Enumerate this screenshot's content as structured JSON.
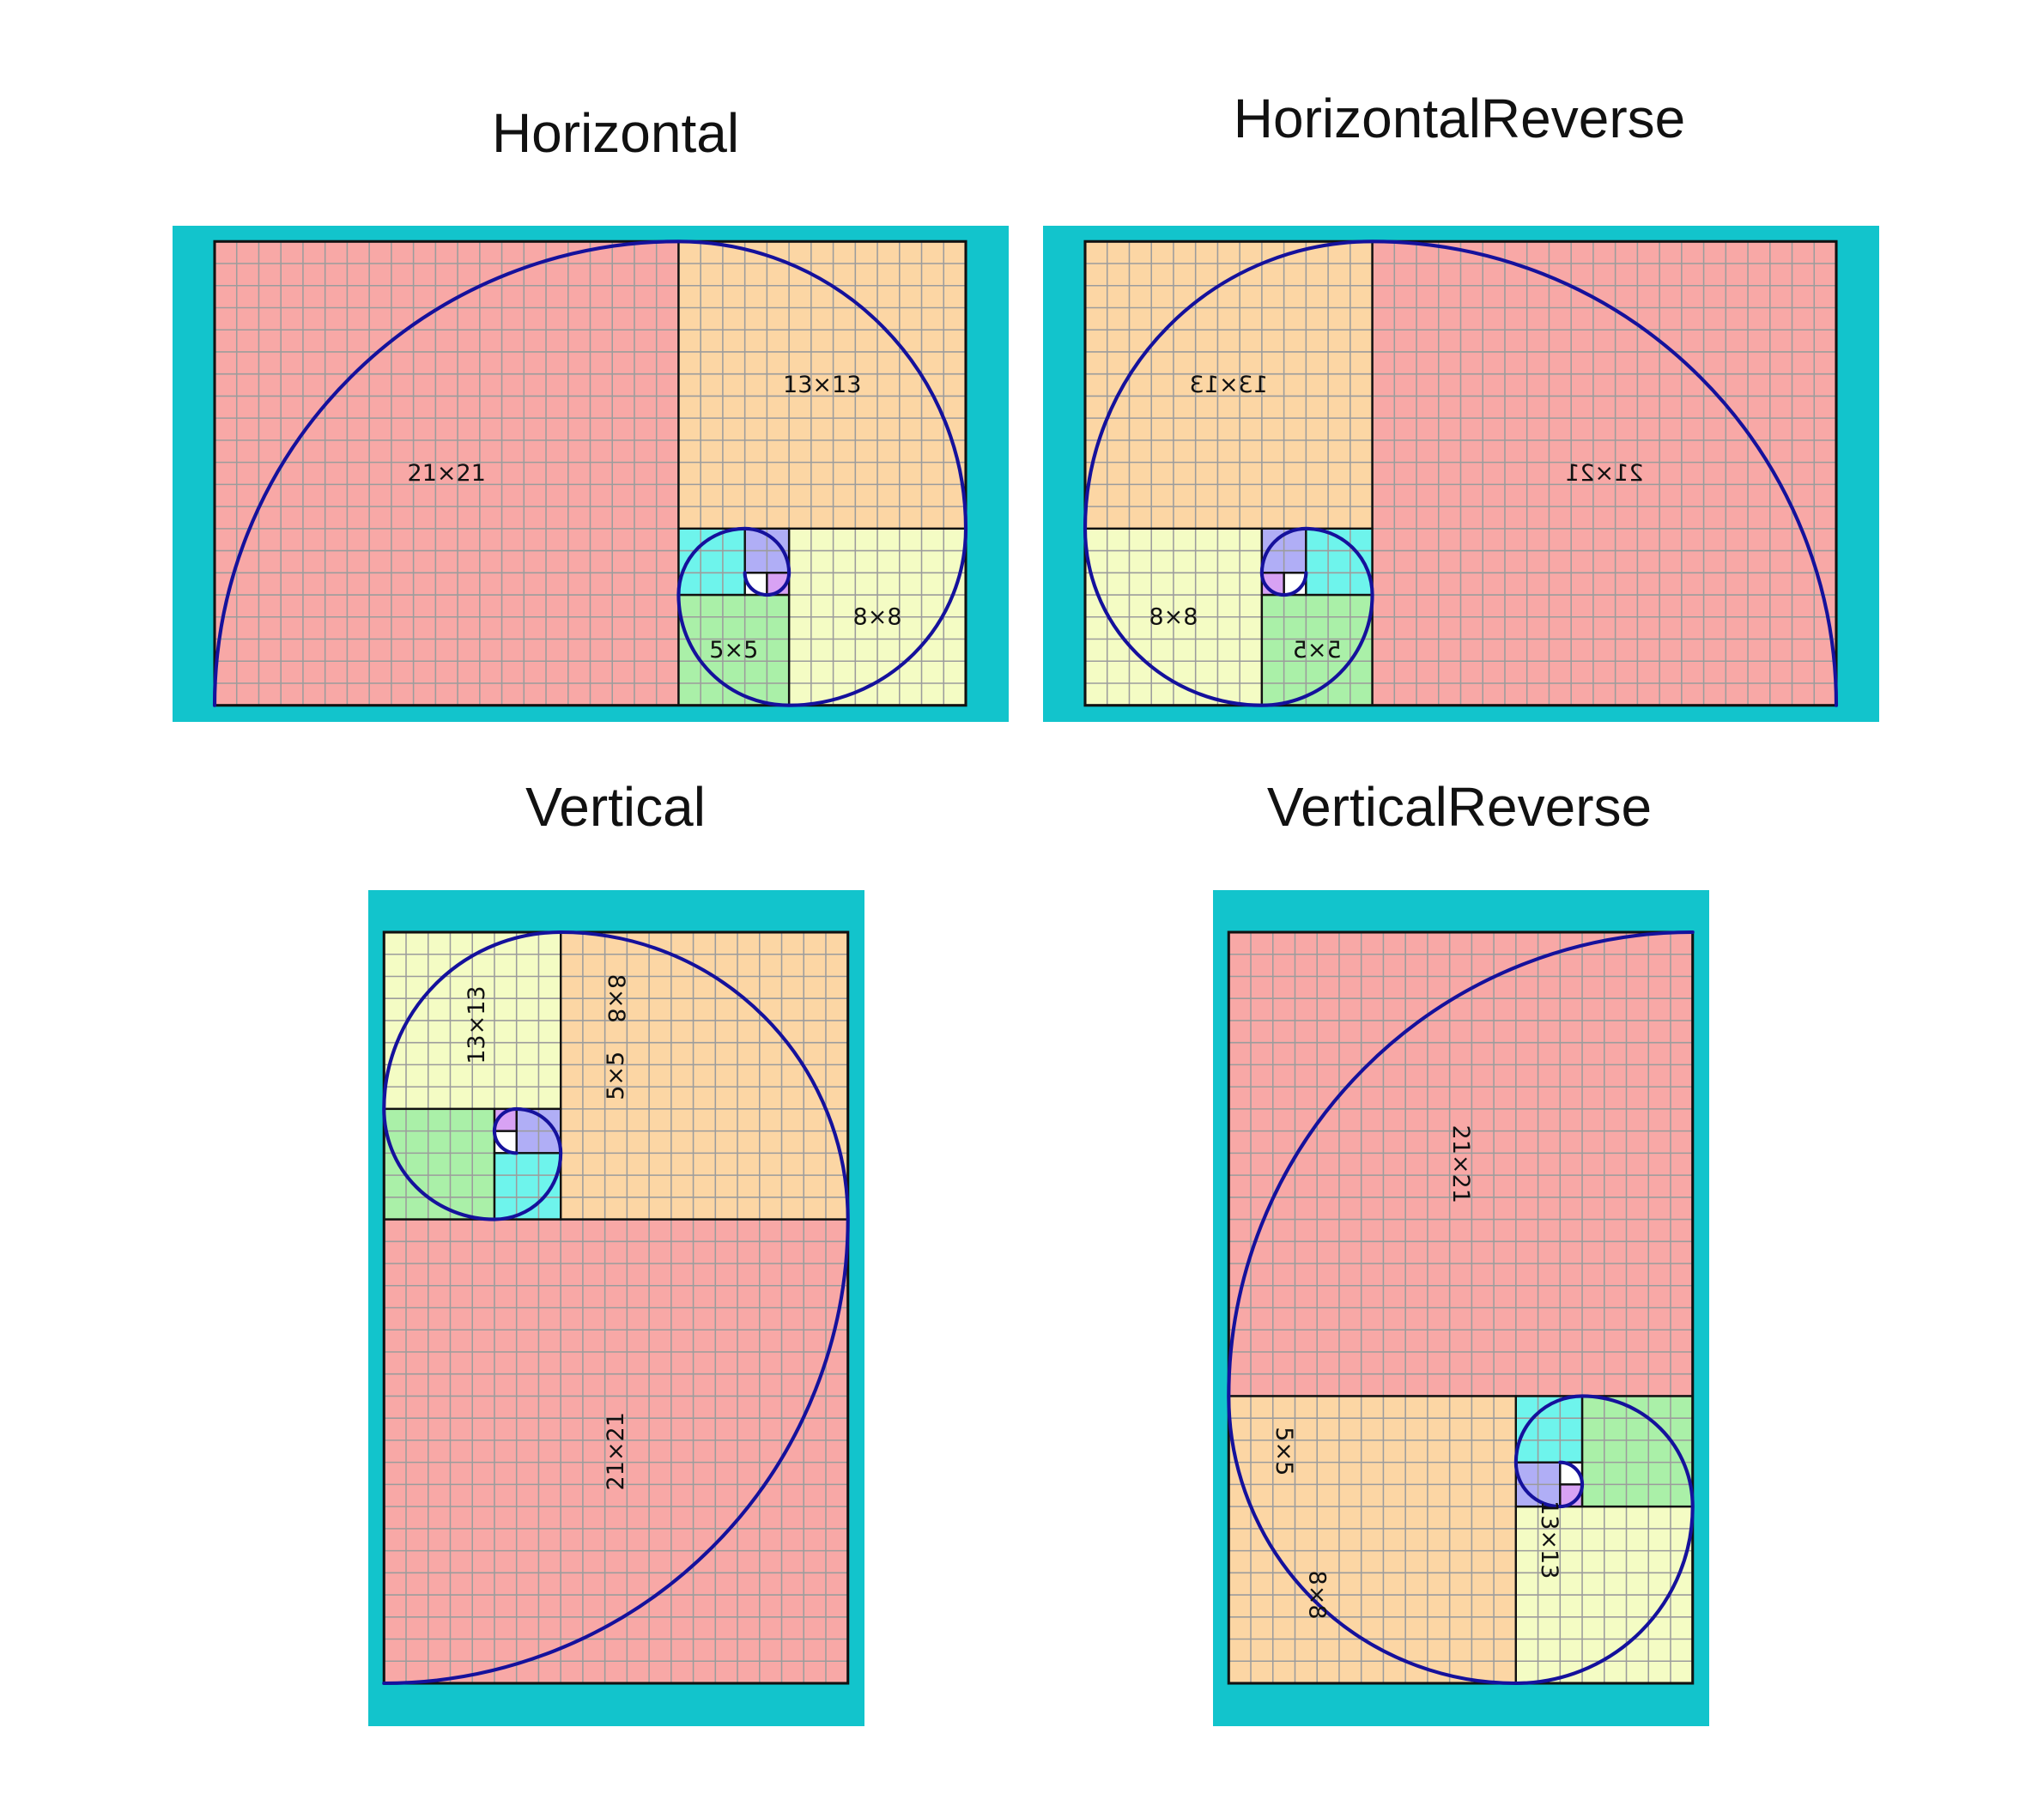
{
  "panels": [
    {
      "id": "horizontal",
      "title": "Horizontal",
      "labels": [
        "21×21",
        "13×13",
        "8×8",
        "5×5"
      ]
    },
    {
      "id": "horizontal-reverse",
      "title": "HorizontalReverse",
      "labels": [
        "21×21",
        "13×13",
        "8×8",
        "5×5"
      ]
    },
    {
      "id": "vertical",
      "title": "Vertical",
      "labels": [
        "21×21",
        "13×13",
        "8×8",
        "5×5"
      ]
    },
    {
      "id": "vertical-reverse",
      "title": "VerticalReverse",
      "labels": [
        "21×21",
        "13×13",
        "8×8",
        "5×5"
      ]
    }
  ],
  "fibonacci_squares": [
    21,
    13,
    8,
    5,
    3,
    2,
    1,
    1
  ],
  "colors": {
    "background": "#12c4cc",
    "sq21": "#f8a8a6",
    "sq13": "#fcd6a4",
    "sq8": "#f4fcc4",
    "sq5": "#aaf0a8",
    "sq3": "#6ef4ec",
    "sq2": "#b0aef6",
    "sq1a": "#d8a2f4",
    "sq1b": "#ffffff",
    "grid": "#9c9c9c",
    "outline": "#111111",
    "spiral": "#15119c"
  }
}
